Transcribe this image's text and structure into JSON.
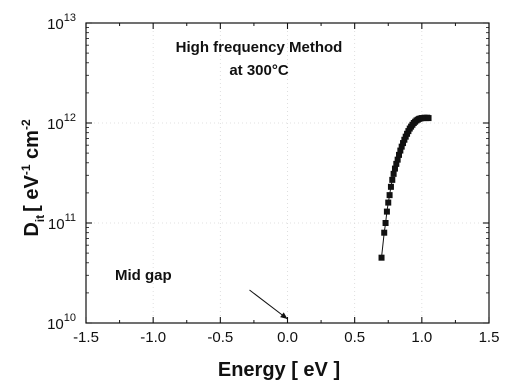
{
  "chart_data": {
    "type": "scatter",
    "x_axis": {
      "label_main": "Energy [ eV ]",
      "lim": [
        -1.5,
        1.5
      ],
      "ticks": [
        -1.5,
        -1.0,
        -0.5,
        0.0,
        0.5,
        1.0,
        1.5
      ],
      "tick_labels": [
        "-1.5",
        "-1.0",
        "-0.5",
        "0.0",
        "0.5",
        "1.0",
        "1.5"
      ]
    },
    "y_axis": {
      "scale": "log",
      "label_parts": {
        "d": "D",
        "d_sub": "it",
        "bracket_open": "[ eV",
        "sup1": "-1",
        "mid": " cm",
        "sup2": "-2",
        "bracket_close": " ]"
      },
      "lim": [
        10000000000.0,
        10000000000000.0
      ],
      "ticks": [
        10000000000.0,
        100000000000.0,
        1000000000000.0,
        10000000000000.0
      ],
      "tick_labels": [
        {
          "base": "10",
          "exp": "10"
        },
        {
          "base": "10",
          "exp": "11"
        },
        {
          "base": "10",
          "exp": "12"
        },
        {
          "base": "10",
          "exp": "13"
        }
      ]
    },
    "grid": true,
    "annotations": {
      "method_line1": "High frequency Method",
      "method_line2": "at 300°C",
      "midgap_label": "Mid gap",
      "midgap_arrow_target": {
        "x": 0.0,
        "y": 10000000000.0
      }
    },
    "series": [
      {
        "marker": "square",
        "color": "#111111",
        "points": [
          {
            "x": 0.7,
            "y": 45000000000.0
          },
          {
            "x": 0.72,
            "y": 80000000000.0
          },
          {
            "x": 0.73,
            "y": 100000000000.0
          },
          {
            "x": 0.74,
            "y": 130000000000.0
          },
          {
            "x": 0.75,
            "y": 160000000000.0
          },
          {
            "x": 0.76,
            "y": 190000000000.0
          },
          {
            "x": 0.77,
            "y": 230000000000.0
          },
          {
            "x": 0.78,
            "y": 270000000000.0
          },
          {
            "x": 0.79,
            "y": 310000000000.0
          },
          {
            "x": 0.8,
            "y": 350000000000.0
          },
          {
            "x": 0.81,
            "y": 390000000000.0
          },
          {
            "x": 0.82,
            "y": 430000000000.0
          },
          {
            "x": 0.83,
            "y": 480000000000.0
          },
          {
            "x": 0.84,
            "y": 530000000000.0
          },
          {
            "x": 0.85,
            "y": 580000000000.0
          },
          {
            "x": 0.86,
            "y": 630000000000.0
          },
          {
            "x": 0.87,
            "y": 680000000000.0
          },
          {
            "x": 0.88,
            "y": 730000000000.0
          },
          {
            "x": 0.89,
            "y": 780000000000.0
          },
          {
            "x": 0.9,
            "y": 830000000000.0
          },
          {
            "x": 0.91,
            "y": 880000000000.0
          },
          {
            "x": 0.92,
            "y": 920000000000.0
          },
          {
            "x": 0.93,
            "y": 960000000000.0
          },
          {
            "x": 0.94,
            "y": 1000000000000.0
          },
          {
            "x": 0.95,
            "y": 1030000000000.0
          },
          {
            "x": 0.96,
            "y": 1060000000000.0
          },
          {
            "x": 0.97,
            "y": 1080000000000.0
          },
          {
            "x": 0.98,
            "y": 1100000000000.0
          },
          {
            "x": 0.99,
            "y": 1110000000000.0
          },
          {
            "x": 1.0,
            "y": 1120000000000.0
          },
          {
            "x": 1.01,
            "y": 1120000000000.0
          },
          {
            "x": 1.02,
            "y": 1130000000000.0
          },
          {
            "x": 1.03,
            "y": 1120000000000.0
          },
          {
            "x": 1.04,
            "y": 1130000000000.0
          },
          {
            "x": 1.05,
            "y": 1120000000000.0
          }
        ]
      }
    ]
  }
}
